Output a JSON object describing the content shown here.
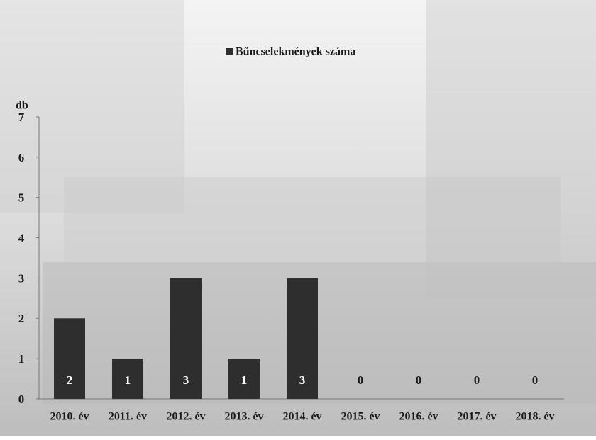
{
  "chart_data": {
    "type": "bar",
    "legend_label": "Bűncselekmények száma",
    "y_label": "db",
    "categories": [
      "2010. év",
      "2011. év",
      "2012. év",
      "2013. év",
      "2014. év",
      "2015. év",
      "2016. év",
      "2017. év",
      "2018. év"
    ],
    "values": [
      2,
      1,
      3,
      1,
      3,
      0,
      0,
      0,
      0
    ],
    "color": "#2e2e2e",
    "ylim": [
      0,
      7
    ],
    "yticks": [
      0,
      1,
      2,
      3,
      4,
      5,
      6,
      7
    ]
  }
}
